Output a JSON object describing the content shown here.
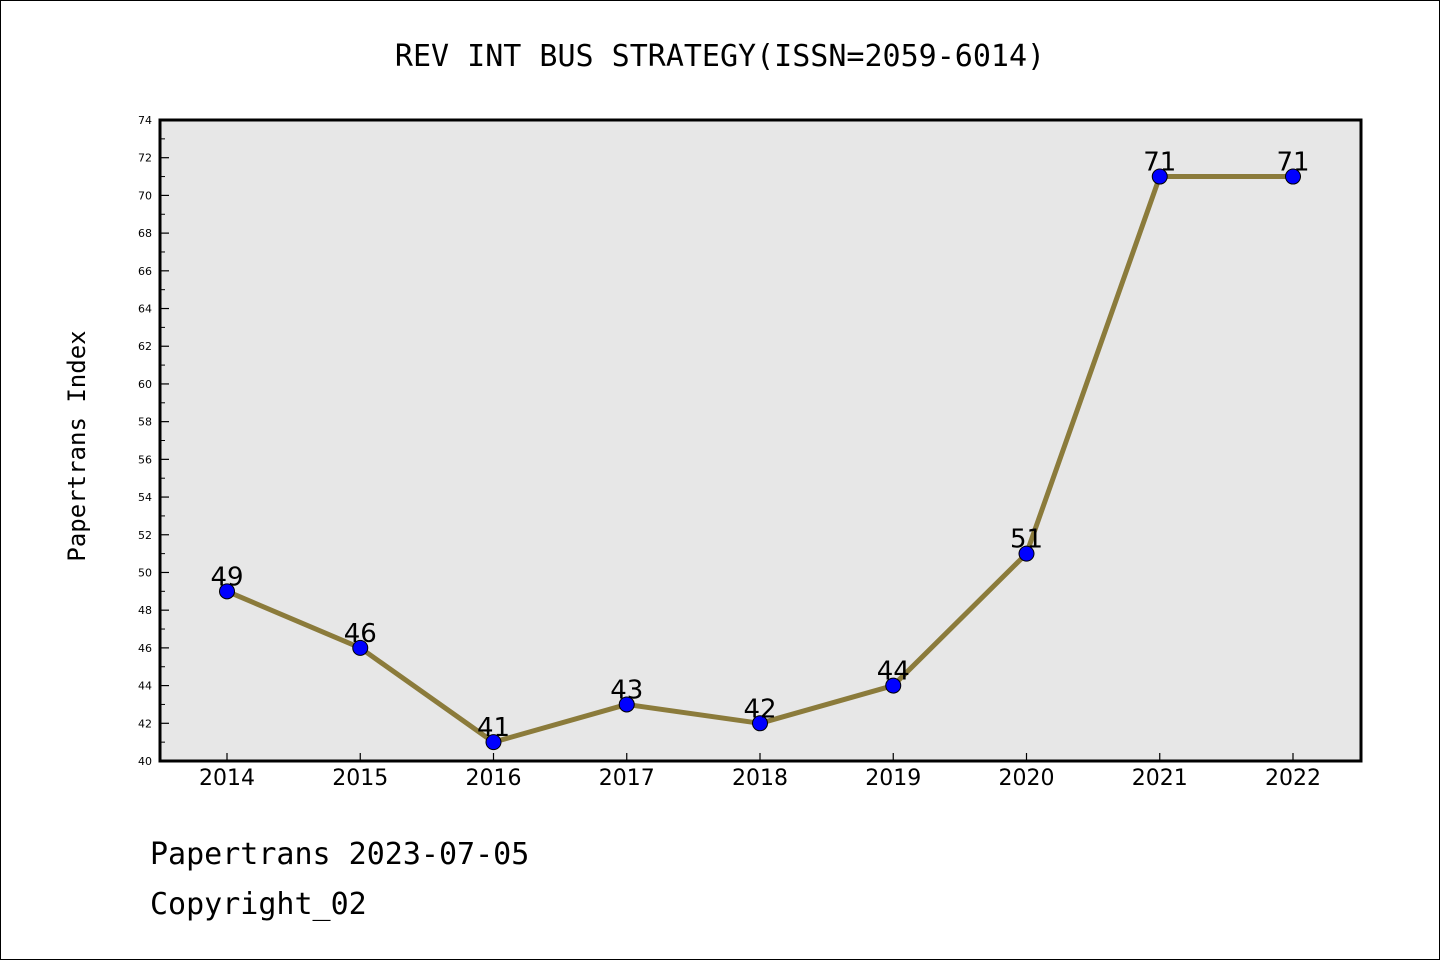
{
  "footer": {
    "line1": "Papertrans 2023-07-05",
    "line2": "Copyright_02"
  },
  "colors": {
    "plot_background": "#e7e7e7",
    "line": "#8b7b3b",
    "marker": "#0000ff",
    "axis": "#000000"
  },
  "chart_data": {
    "type": "line",
    "title": "REV INT BUS STRATEGY(ISSN=2059-6014)",
    "xlabel": "",
    "ylabel": "Papertrans Index",
    "ylim": [
      40,
      74
    ],
    "y_ticks": [
      40,
      42,
      44,
      46,
      48,
      50,
      52,
      54,
      56,
      58,
      60,
      62,
      64,
      66,
      68,
      70,
      72,
      74
    ],
    "grid": false,
    "legend": "none",
    "categories": [
      "2014",
      "2015",
      "2016",
      "2017",
      "2018",
      "2019",
      "2020",
      "2021",
      "2022"
    ],
    "series": [
      {
        "values": [
          49,
          46,
          41,
          43,
          42,
          44,
          51,
          71,
          71
        ],
        "color": "#8b7b3b",
        "marker_color": "#0000ff"
      }
    ]
  }
}
